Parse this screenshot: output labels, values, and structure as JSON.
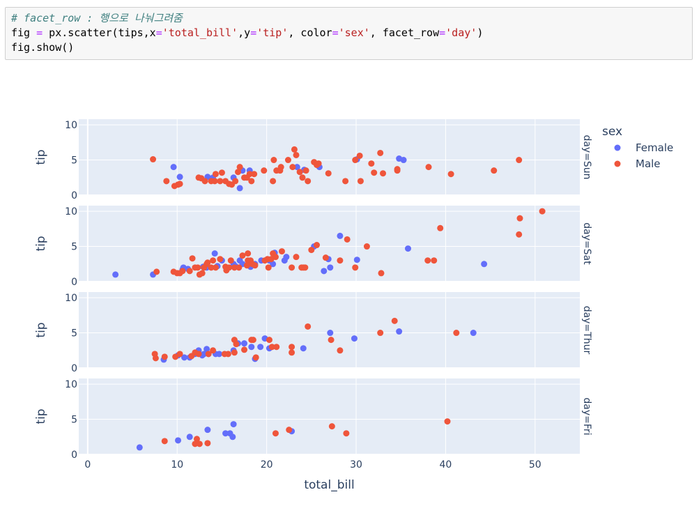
{
  "code": {
    "line1_comment": "# facet_row : 행으로 나눠그려줌",
    "line2": {
      "p1": "fig ",
      "op1": "=",
      "p2": " px.scatter(tips,x",
      "op2": "=",
      "s1": "'total_bill'",
      "p3": ",y",
      "op3": "=",
      "s2": "'tip'",
      "p4": ", color",
      "op4": "=",
      "s3": "'sex'",
      "p5": ", facet_row",
      "op5": "=",
      "s4": "'day'",
      "p6": ")"
    },
    "line3": "fig.show()"
  },
  "colors": {
    "Female": "#636efa",
    "Male": "#ef553b",
    "panel_bg": "#e5ecf6",
    "grid": "#ffffff",
    "text": "#2a3f5f"
  },
  "chart_data": {
    "type": "scatter",
    "xlabel": "total_bill",
    "ylabel": "tip",
    "xlim": [
      -1,
      55
    ],
    "ylim": [
      0,
      10.8
    ],
    "xticks": [
      0,
      10,
      20,
      30,
      40,
      50
    ],
    "yticks": [
      0,
      5,
      10
    ],
    "legend": {
      "title": "sex",
      "placement": "top-right",
      "entries": [
        "Female",
        "Male"
      ]
    },
    "facets": [
      {
        "label": "day=Sun",
        "series": [
          {
            "name": "Female",
            "points": [
              [
                9.6,
                4
              ],
              [
                10.3,
                2.6
              ],
              [
                13.4,
                2.6
              ],
              [
                14.0,
                2.5
              ],
              [
                16.3,
                2.5
              ],
              [
                17.0,
                1.0
              ],
              [
                17.3,
                3.5
              ],
              [
                18.1,
                3.5
              ],
              [
                23.4,
                4
              ],
              [
                24.2,
                3.6
              ],
              [
                25.9,
                4
              ],
              [
                30.1,
                5.1
              ],
              [
                34.8,
                5.2
              ],
              [
                35.3,
                5.0
              ]
            ]
          },
          {
            "name": "Male",
            "points": [
              [
                7.3,
                5.1
              ],
              [
                8.8,
                2
              ],
              [
                9.7,
                1.3
              ],
              [
                10.1,
                1.5
              ],
              [
                10.3,
                1.6
              ],
              [
                12.4,
                2.5
              ],
              [
                12.7,
                2.4
              ],
              [
                13.1,
                2
              ],
              [
                13.8,
                2
              ],
              [
                14.2,
                2
              ],
              [
                14.3,
                3
              ],
              [
                14.8,
                2
              ],
              [
                15.0,
                3.2
              ],
              [
                15.4,
                2
              ],
              [
                15.8,
                1.6
              ],
              [
                16.1,
                1.5
              ],
              [
                16.5,
                2
              ],
              [
                16.8,
                3.3
              ],
              [
                17.0,
                4
              ],
              [
                17.5,
                2.5
              ],
              [
                17.8,
                2.5
              ],
              [
                18.1,
                3
              ],
              [
                18.3,
                2
              ],
              [
                18.6,
                3
              ],
              [
                19.7,
                3.5
              ],
              [
                20.7,
                2
              ],
              [
                20.8,
                5
              ],
              [
                21.1,
                3.5
              ],
              [
                21.6,
                4
              ],
              [
                21.5,
                3.5
              ],
              [
                22.4,
                5
              ],
              [
                22.9,
                4
              ],
              [
                23.1,
                6.5
              ],
              [
                23.3,
                5.7
              ],
              [
                23.7,
                3.3
              ],
              [
                24.0,
                2.5
              ],
              [
                24.4,
                3.5
              ],
              [
                24.6,
                2
              ],
              [
                25.3,
                4.7
              ],
              [
                25.6,
                4.3
              ],
              [
                25.8,
                4.5
              ],
              [
                26.9,
                3.1
              ],
              [
                28.8,
                2
              ],
              [
                29.9,
                5
              ],
              [
                30.4,
                5.6
              ],
              [
                30.5,
                2
              ],
              [
                31.7,
                4.5
              ],
              [
                32.0,
                3.2
              ],
              [
                32.7,
                6
              ],
              [
                33.0,
                3.1
              ],
              [
                34.6,
                3.5
              ],
              [
                34.6,
                3.7
              ],
              [
                38.1,
                4
              ],
              [
                40.6,
                3
              ],
              [
                45.4,
                3.5
              ],
              [
                48.2,
                5
              ]
            ]
          }
        ]
      },
      {
        "label": "day=Sat",
        "series": [
          {
            "name": "Female",
            "points": [
              [
                3.1,
                1
              ],
              [
                7.3,
                1
              ],
              [
                10.6,
                1.7
              ],
              [
                10.7,
                2
              ],
              [
                11.2,
                1.8
              ],
              [
                12.9,
                2.1
              ],
              [
                13.3,
                2
              ],
              [
                14.2,
                4
              ],
              [
                14.5,
                2.2
              ],
              [
                15.0,
                3
              ],
              [
                16.3,
                2.5
              ],
              [
                16.5,
                2.2
              ],
              [
                17.0,
                3
              ],
              [
                17.3,
                2.5
              ],
              [
                18.2,
                2.1
              ],
              [
                18.7,
                2.5
              ],
              [
                19.4,
                3
              ],
              [
                20.3,
                3
              ],
              [
                20.7,
                2.5
              ],
              [
                20.9,
                4.1
              ],
              [
                22.2,
                3.5
              ],
              [
                22.0,
                3
              ],
              [
                25.3,
                5
              ],
              [
                26.4,
                1.5
              ],
              [
                26.9,
                3.2
              ],
              [
                27.1,
                2
              ],
              [
                28.2,
                6.5
              ],
              [
                30.1,
                3.1
              ],
              [
                35.8,
                4.7
              ],
              [
                44.3,
                2.5
              ]
            ]
          },
          {
            "name": "Male",
            "points": [
              [
                7.7,
                1.4
              ],
              [
                9.6,
                1.4
              ],
              [
                10.0,
                1.2
              ],
              [
                10.3,
                1.2
              ],
              [
                10.6,
                1.5
              ],
              [
                11.4,
                1.5
              ],
              [
                11.7,
                3.3
              ],
              [
                12.0,
                2
              ],
              [
                12.3,
                2
              ],
              [
                12.5,
                1
              ],
              [
                12.8,
                1.2
              ],
              [
                13.0,
                2
              ],
              [
                13.3,
                2.5
              ],
              [
                13.4,
                2.7
              ],
              [
                13.8,
                2
              ],
              [
                14.0,
                3
              ],
              [
                14.3,
                2
              ],
              [
                14.8,
                3.2
              ],
              [
                15.4,
                2.1
              ],
              [
                15.5,
                1.6
              ],
              [
                15.8,
                2
              ],
              [
                16.0,
                3
              ],
              [
                16.4,
                2
              ],
              [
                16.9,
                2
              ],
              [
                17.3,
                3.7
              ],
              [
                17.8,
                2.3
              ],
              [
                17.9,
                3
              ],
              [
                17.9,
                4
              ],
              [
                18.0,
                2.7
              ],
              [
                18.2,
                3
              ],
              [
                18.4,
                2.5
              ],
              [
                18.7,
                2.3
              ],
              [
                19.8,
                3
              ],
              [
                20.1,
                3.2
              ],
              [
                20.2,
                2
              ],
              [
                20.5,
                3.2
              ],
              [
                20.7,
                4
              ],
              [
                21.0,
                3.5
              ],
              [
                21.7,
                4.3
              ],
              [
                22.8,
                2
              ],
              [
                23.3,
                3.5
              ],
              [
                23.9,
                2
              ],
              [
                24.1,
                2
              ],
              [
                24.3,
                2
              ],
              [
                25.0,
                4.5
              ],
              [
                25.6,
                5.2
              ],
              [
                26.6,
                3.4
              ],
              [
                28.2,
                3
              ],
              [
                29.0,
                6
              ],
              [
                29.9,
                2
              ],
              [
                31.2,
                5
              ],
              [
                32.8,
                1.2
              ],
              [
                38.0,
                3
              ],
              [
                38.7,
                3
              ],
              [
                39.4,
                7.6
              ],
              [
                48.2,
                6.7
              ],
              [
                48.3,
                9
              ],
              [
                50.8,
                10
              ]
            ]
          }
        ]
      },
      {
        "label": "day=Thur",
        "series": [
          {
            "name": "Female",
            "points": [
              [
                8.5,
                1.2
              ],
              [
                10.1,
                1.8
              ],
              [
                10.8,
                1.5
              ],
              [
                11.4,
                1.5
              ],
              [
                12.0,
                2
              ],
              [
                12.4,
                2.5
              ],
              [
                12.8,
                1.8
              ],
              [
                13.0,
                2
              ],
              [
                13.3,
                2.7
              ],
              [
                13.5,
                2
              ],
              [
                14.3,
                2
              ],
              [
                14.7,
                2
              ],
              [
                16.3,
                2.5
              ],
              [
                16.8,
                3.5
              ],
              [
                17.5,
                3.5
              ],
              [
                18.3,
                3
              ],
              [
                18.7,
                1.3
              ],
              [
                19.3,
                3
              ],
              [
                19.8,
                4.2
              ],
              [
                20.3,
                2.8
              ],
              [
                24.1,
                2.8
              ],
              [
                27.1,
                5
              ],
              [
                29.8,
                4.2
              ],
              [
                34.8,
                5.2
              ],
              [
                43.1,
                5
              ]
            ]
          },
          {
            "name": "Male",
            "points": [
              [
                7.5,
                2
              ],
              [
                7.6,
                1.4
              ],
              [
                8.6,
                1.6
              ],
              [
                9.8,
                1.6
              ],
              [
                10.3,
                2
              ],
              [
                11.6,
                1.7
              ],
              [
                12.0,
                2.2
              ],
              [
                12.4,
                2
              ],
              [
                13.5,
                2
              ],
              [
                14.0,
                2.5
              ],
              [
                15.3,
                2
              ],
              [
                15.7,
                2
              ],
              [
                16.4,
                2.2
              ],
              [
                16.4,
                4
              ],
              [
                16.6,
                3.4
              ],
              [
                17.5,
                2.6
              ],
              [
                18.3,
                4
              ],
              [
                18.5,
                4
              ],
              [
                18.8,
                1.5
              ],
              [
                20.3,
                4
              ],
              [
                20.6,
                3
              ],
              [
                21.1,
                3
              ],
              [
                22.8,
                2.2
              ],
              [
                22.8,
                3
              ],
              [
                24.6,
                5.9
              ],
              [
                27.2,
                4
              ],
              [
                28.2,
                2.5
              ],
              [
                32.7,
                5
              ],
              [
                34.3,
                6.7
              ],
              [
                41.2,
                5
              ]
            ]
          }
        ]
      },
      {
        "label": "day=Fri",
        "series": [
          {
            "name": "Female",
            "points": [
              [
                5.8,
                1
              ],
              [
                10.1,
                2
              ],
              [
                11.4,
                2.5
              ],
              [
                13.4,
                3.5
              ],
              [
                15.4,
                3
              ],
              [
                15.9,
                3
              ],
              [
                16.2,
                2.5
              ],
              [
                16.3,
                4.3
              ],
              [
                22.8,
                3.3
              ]
            ]
          },
          {
            "name": "Male",
            "points": [
              [
                8.6,
                1.9
              ],
              [
                12.0,
                1.5
              ],
              [
                12.2,
                2.2
              ],
              [
                12.5,
                1.5
              ],
              [
                13.4,
                1.6
              ],
              [
                21.0,
                3
              ],
              [
                22.5,
                3.5
              ],
              [
                27.3,
                4
              ],
              [
                28.9,
                3
              ],
              [
                40.2,
                4.7
              ]
            ]
          }
        ]
      }
    ]
  }
}
